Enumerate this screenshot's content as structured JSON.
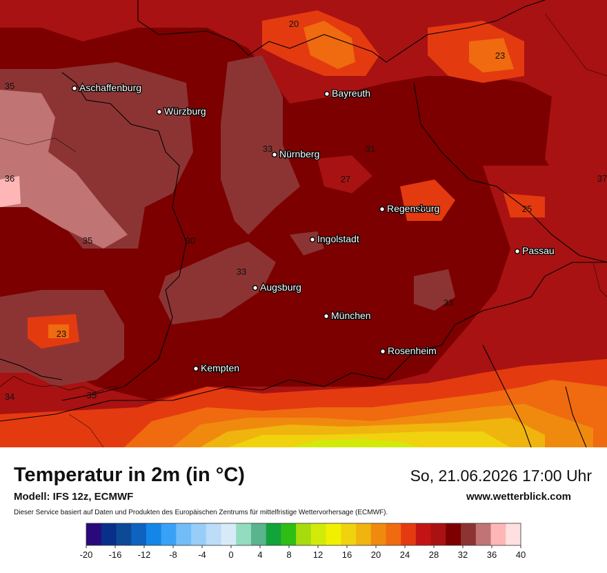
{
  "map": {
    "cities": [
      {
        "name": "Aschaffenburg"
      },
      {
        "name": "Würzburg"
      },
      {
        "name": "Bayreuth"
      },
      {
        "name": "Nürnberg"
      },
      {
        "name": "Regensburg"
      },
      {
        "name": "Ingolstadt"
      },
      {
        "name": "Passau"
      },
      {
        "name": "Augsburg"
      },
      {
        "name": "München"
      },
      {
        "name": "Rosenheim"
      },
      {
        "name": "Kempten"
      }
    ],
    "isotherm_labels": [
      "20",
      "23",
      "35",
      "33",
      "31",
      "36",
      "27",
      "25",
      "25",
      "37",
      "35",
      "30",
      "33",
      "33",
      "23",
      "34",
      "35"
    ]
  },
  "footer": {
    "title": "Temperatur in 2m (in °C)",
    "datetime": "So, 21.06.2026 17:00 Uhr",
    "model": "Modell: IFS 12z, ECMWF",
    "site": "www.wetterblick.com",
    "disclaimer": "Dieser Service basiert auf Daten und Produkten des Europäischen Zentrums für mittelfristige Wettervorhersage (ECMWF)."
  },
  "legend": {
    "colors": [
      "#2a0a7a",
      "#082f8a",
      "#0c4a96",
      "#0d63be",
      "#1486e8",
      "#3aa2f6",
      "#72bdf8",
      "#98cdf8",
      "#bcdcf8",
      "#d8eaf8",
      "#92dcc0",
      "#5ab48c",
      "#12a43a",
      "#2ebe14",
      "#a6dc0c",
      "#d2ea0a",
      "#f0f000",
      "#f0d20e",
      "#f0b40e",
      "#f08a0e",
      "#f06a10",
      "#e43a10",
      "#c21414",
      "#a81212",
      "#7c0000",
      "#8c3434",
      "#c07474",
      "#ffb6b6",
      "#ffe0e0"
    ],
    "ticks": [
      "-20",
      "-16",
      "-12",
      "-8",
      "-4",
      "0",
      "4",
      "8",
      "12",
      "16",
      "20",
      "24",
      "28",
      "32",
      "36",
      "40"
    ]
  }
}
